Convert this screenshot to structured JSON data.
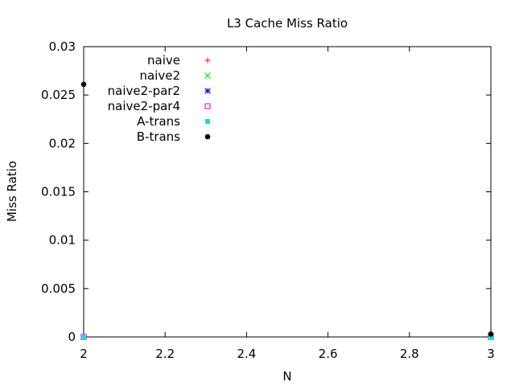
{
  "chart_data": {
    "type": "scatter",
    "title": "L3 Cache Miss Ratio",
    "xlabel": "N",
    "ylabel": "Miss Ratio",
    "xlim": [
      2,
      3
    ],
    "ylim": [
      0,
      0.03
    ],
    "xticks": [
      2,
      2.2,
      2.4,
      2.6,
      2.8,
      3
    ],
    "xtick_labels": [
      "2",
      "2.2",
      "2.4",
      "2.6",
      "2.8",
      "3"
    ],
    "yticks": [
      0,
      0.005,
      0.01,
      0.015,
      0.02,
      0.025,
      0.03
    ],
    "ytick_labels": [
      "0",
      "0.005",
      "0.01",
      "0.015",
      "0.02",
      "0.025",
      "0.03"
    ],
    "grid": false,
    "legend_position": "top-left",
    "series": [
      {
        "name": "naive",
        "marker": "plus",
        "color": "#ff0000",
        "x": [
          2,
          3
        ],
        "y": [
          0,
          0
        ]
      },
      {
        "name": "naive2",
        "marker": "cross",
        "color": "#00cc00",
        "x": [
          2,
          3
        ],
        "y": [
          0,
          0
        ]
      },
      {
        "name": "naive2-par2",
        "marker": "star",
        "color": "#0000ff",
        "x": [
          2,
          3
        ],
        "y": [
          0,
          0
        ]
      },
      {
        "name": "naive2-par4",
        "marker": "open-square",
        "color": "#cc00cc",
        "x": [
          2,
          3
        ],
        "y": [
          0,
          0
        ]
      },
      {
        "name": "A-trans",
        "marker": "filled-square",
        "color": "#00e5ee",
        "x": [
          2,
          3
        ],
        "y": [
          0,
          0
        ]
      },
      {
        "name": "B-trans",
        "marker": "filled-circle",
        "color": "#000000",
        "x": [
          2,
          3
        ],
        "y": [
          0.0261,
          0.0003
        ]
      }
    ]
  }
}
